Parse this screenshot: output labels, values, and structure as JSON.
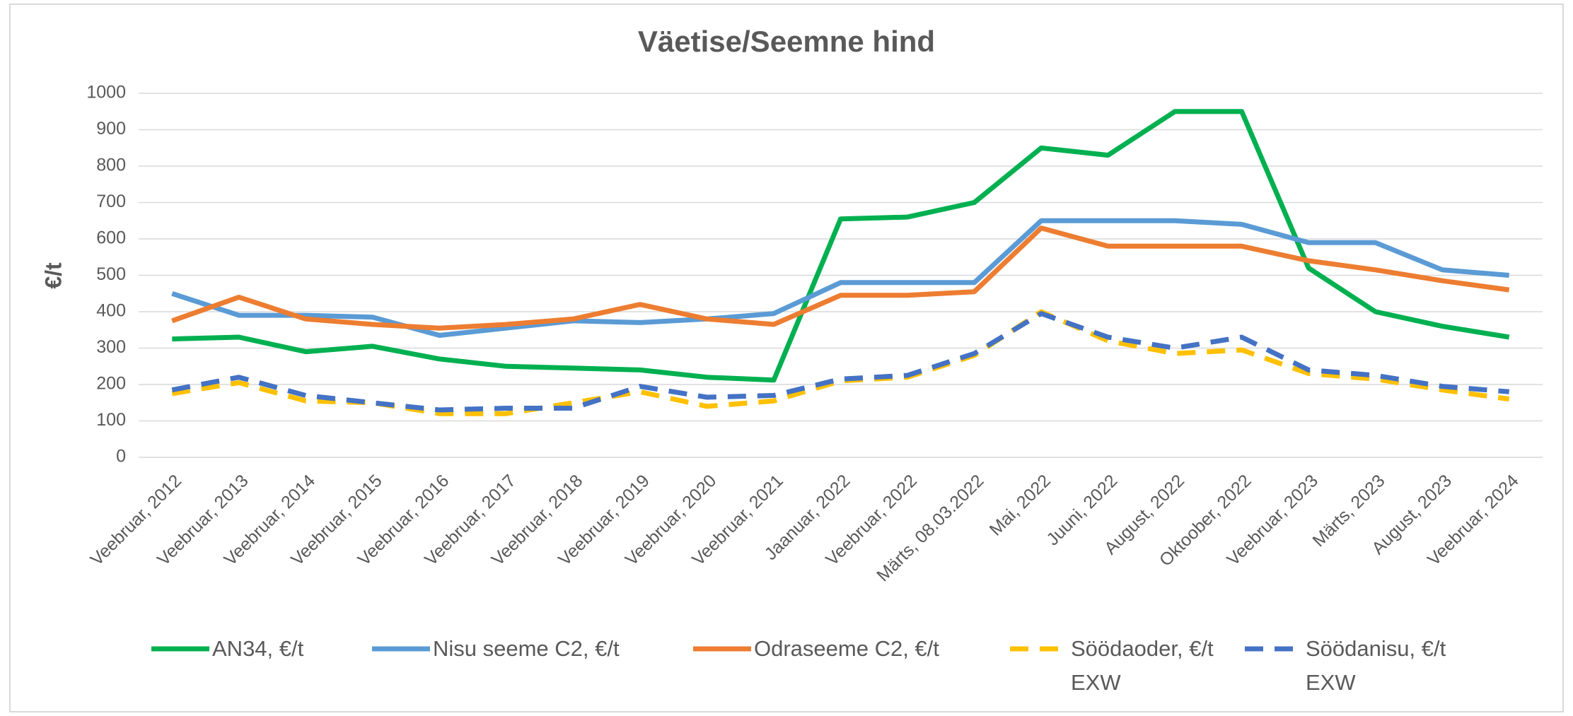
{
  "chart_data": {
    "type": "line",
    "title": "Väetise/Seemne hind",
    "y_label": "€/t",
    "categories": [
      "Veebruar, 2012",
      "Veebruar, 2013",
      "Veebruar, 2014",
      "Veebruar, 2015",
      "Veebruar, 2016",
      "Veebruar, 2017",
      "Veebruar, 2018",
      "Veebruar, 2019",
      "Veebruar, 2020",
      "Veebruar, 2021",
      "Jaanuar, 2022",
      "Veebruar, 2022",
      "Märts, 08.03.2022",
      "Mai, 2022",
      "Juuni, 2022",
      "August, 2022",
      "Oktoober, 2022",
      "Veebruar, 2023",
      "Märts, 2023",
      "August, 2023",
      "Veebruar, 2024"
    ],
    "series": [
      {
        "name": "AN34, €/t",
        "color": "#00b050",
        "dashed": false,
        "values": [
          325,
          330,
          290,
          305,
          270,
          250,
          245,
          240,
          220,
          212,
          655,
          660,
          700,
          850,
          830,
          950,
          950,
          520,
          400,
          360,
          330
        ]
      },
      {
        "name": "Nisu seeme C2, €/t",
        "color": "#5b9bd5",
        "dashed": false,
        "values": [
          450,
          390,
          390,
          385,
          335,
          355,
          375,
          370,
          380,
          395,
          480,
          480,
          480,
          650,
          650,
          650,
          640,
          590,
          590,
          515,
          500
        ]
      },
      {
        "name": "Odraseeme C2, €/t",
        "color": "#ed7d31",
        "dashed": false,
        "values": [
          375,
          440,
          380,
          365,
          355,
          365,
          380,
          420,
          380,
          365,
          445,
          445,
          455,
          630,
          580,
          580,
          580,
          540,
          515,
          485,
          460
        ]
      },
      {
        "name": "Söödaoder, €/t EXW",
        "color": "#ffc000",
        "dashed": true,
        "values": [
          175,
          205,
          155,
          150,
          120,
          120,
          150,
          180,
          140,
          155,
          210,
          220,
          280,
          400,
          320,
          285,
          295,
          230,
          215,
          185,
          160
        ]
      },
      {
        "name": "Söödanisu, €/t EXW",
        "color": "#4472c4",
        "dashed": true,
        "values": [
          185,
          220,
          170,
          150,
          130,
          135,
          135,
          195,
          165,
          170,
          215,
          225,
          285,
          395,
          330,
          300,
          330,
          240,
          225,
          195,
          180
        ]
      }
    ],
    "ylim": [
      0,
      1000
    ],
    "yticks": [
      0,
      100,
      200,
      300,
      400,
      500,
      600,
      700,
      800,
      900,
      1000
    ],
    "grid": true,
    "legend": "bottom"
  }
}
